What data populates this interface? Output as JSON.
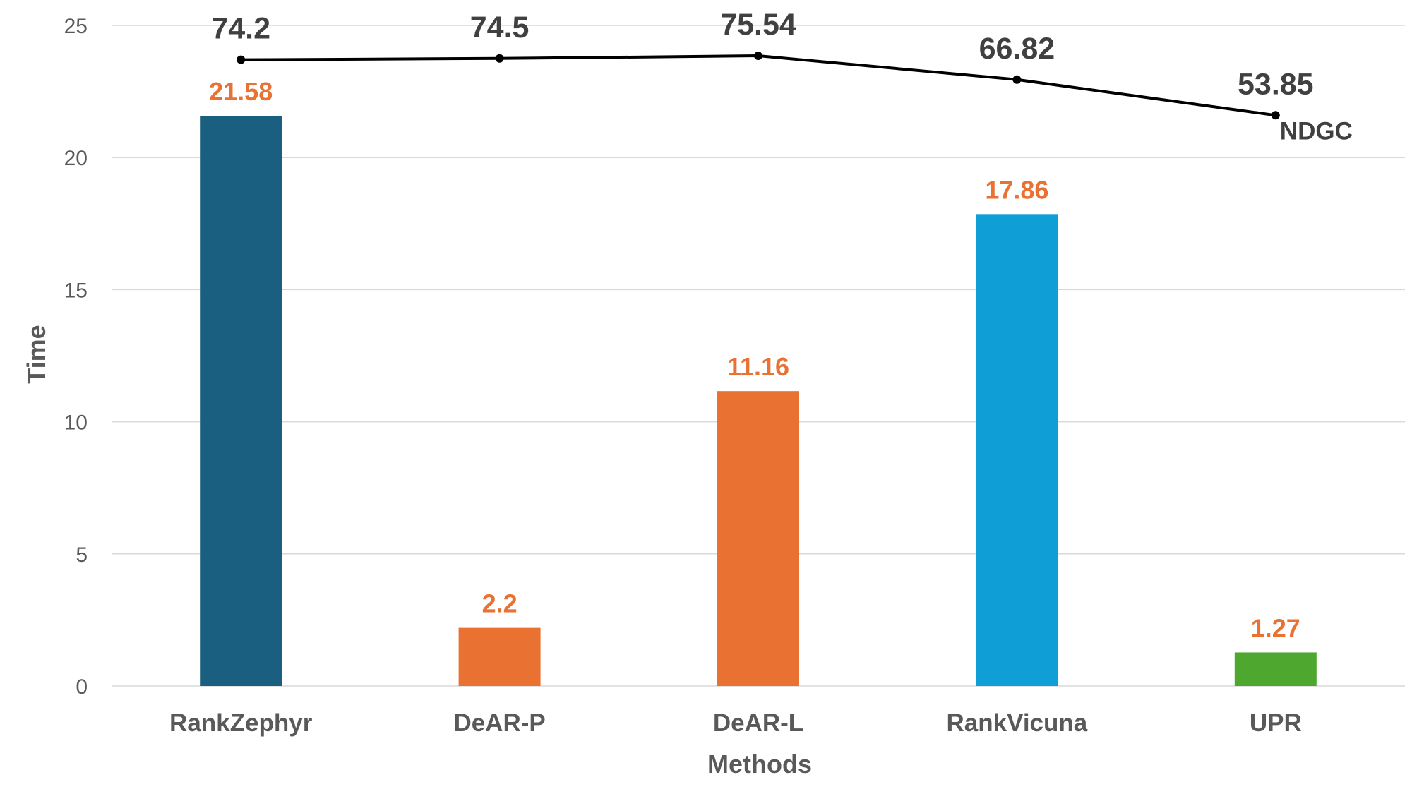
{
  "chart_data": {
    "type": "bar",
    "categories": [
      "RankZephyr",
      "DeAR-P",
      "DeAR-L",
      "RankVicuna",
      "UPR"
    ],
    "series": [
      {
        "type": "bar",
        "values": [
          21.58,
          2.2,
          11.16,
          17.86,
          1.27
        ],
        "colors": [
          "#1A5E80",
          "#E97132",
          "#E97132",
          "#0F9ED5",
          "#4EA72E"
        ],
        "label_color": "#E97132"
      },
      {
        "type": "line",
        "name": "NDGC",
        "values": [
          74.2,
          74.5,
          75.54,
          66.82,
          53.85
        ],
        "color": "#000000",
        "plotted_on_time_scale": [
          23.7,
          23.75,
          23.85,
          22.95,
          21.6
        ]
      }
    ],
    "xlabel": "Methods",
    "ylabel": "Time",
    "ylim": [
      0,
      25
    ],
    "yticks": [
      "0",
      "5",
      "10",
      "15",
      "20",
      "25"
    ],
    "grid": "horizontal",
    "gridline_color": "#D9D9D9"
  }
}
